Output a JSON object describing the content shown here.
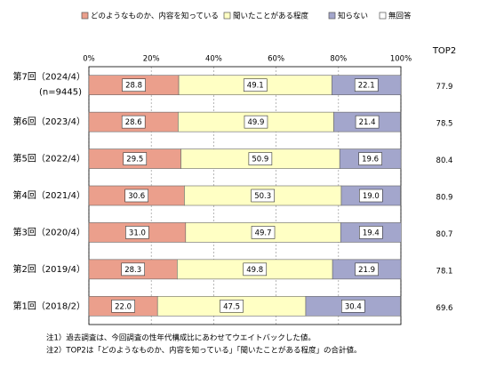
{
  "chart_data": {
    "type": "stacked-bar-horizontal",
    "categories": [
      "第7回（2024/4）",
      "第6回（2023/4）",
      "第5回（2022/4）",
      "第4回（2021/4）",
      "第3回（2020/4）",
      "第2回（2019/4）",
      "第1回（2018/2）"
    ],
    "category_note": "(n=9445)",
    "series": [
      {
        "name": "どのようなものか、内容を知っている",
        "color": "#eb9f8c",
        "values": [
          28.8,
          28.6,
          29.5,
          30.6,
          31.0,
          28.3,
          22.0
        ],
        "value_labels": [
          "28.8",
          "28.6",
          "29.5",
          "30.6",
          "31.0",
          "28.3",
          "22.0"
        ]
      },
      {
        "name": "聞いたことがある程度",
        "color": "#ffffc4",
        "values": [
          49.1,
          49.9,
          50.9,
          50.3,
          49.7,
          49.8,
          47.5
        ],
        "value_labels": [
          "49.1",
          "49.9",
          "50.9",
          "50.3",
          "49.7",
          "49.8",
          "47.5"
        ]
      },
      {
        "name": "知らない",
        "color": "#a3a6cc",
        "values": [
          22.1,
          21.4,
          19.6,
          19.0,
          19.4,
          21.9,
          30.4
        ],
        "value_labels": [
          "22.1",
          "21.4",
          "19.6",
          "19.0",
          "19.4",
          "21.9",
          "30.4"
        ]
      },
      {
        "name": "無回答",
        "color": "#ffffff",
        "values": [
          0,
          0.1,
          0,
          0.1,
          0,
          0,
          0.1
        ]
      }
    ],
    "xlim": [
      0,
      100
    ],
    "xticks": [
      {
        "value": 0,
        "label": "0%"
      },
      {
        "value": 20,
        "label": "20%"
      },
      {
        "value": 40,
        "label": "40%"
      },
      {
        "value": 60,
        "label": "60%"
      },
      {
        "value": 80,
        "label": "80%"
      },
      {
        "value": 100,
        "label": "100%"
      }
    ],
    "grid": true,
    "top2": {
      "label": "TOP2",
      "values": [
        77.9,
        78.5,
        80.4,
        80.9,
        80.7,
        78.1,
        69.6
      ]
    },
    "notes": [
      "注1）過去調査は、今回調査の性年代構成比にあわせてウエイトバックした値。",
      "注2）TOP2は「どのようなものか、内容を知っている」「聞いたことがある程度」の合計値。"
    ]
  }
}
